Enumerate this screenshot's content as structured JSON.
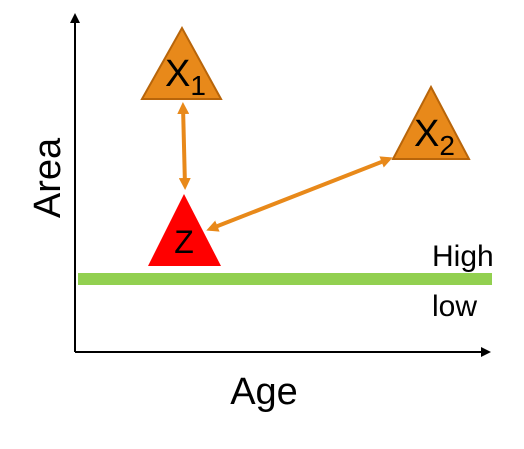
{
  "axes": {
    "x_label": "Age",
    "y_label": "Area"
  },
  "threshold": {
    "above_label": "High",
    "below_label": "low",
    "color": "#92d050"
  },
  "nodes": {
    "x1": {
      "letter": "X",
      "subscript": "1",
      "color": "#e8891a",
      "stroke": "#b8650a"
    },
    "x2": {
      "letter": "X",
      "subscript": "2",
      "color": "#e8891a",
      "stroke": "#b8650a"
    },
    "z": {
      "letter": "Z",
      "color": "#ff0000"
    }
  },
  "arrows": {
    "color": "#e8891a"
  }
}
